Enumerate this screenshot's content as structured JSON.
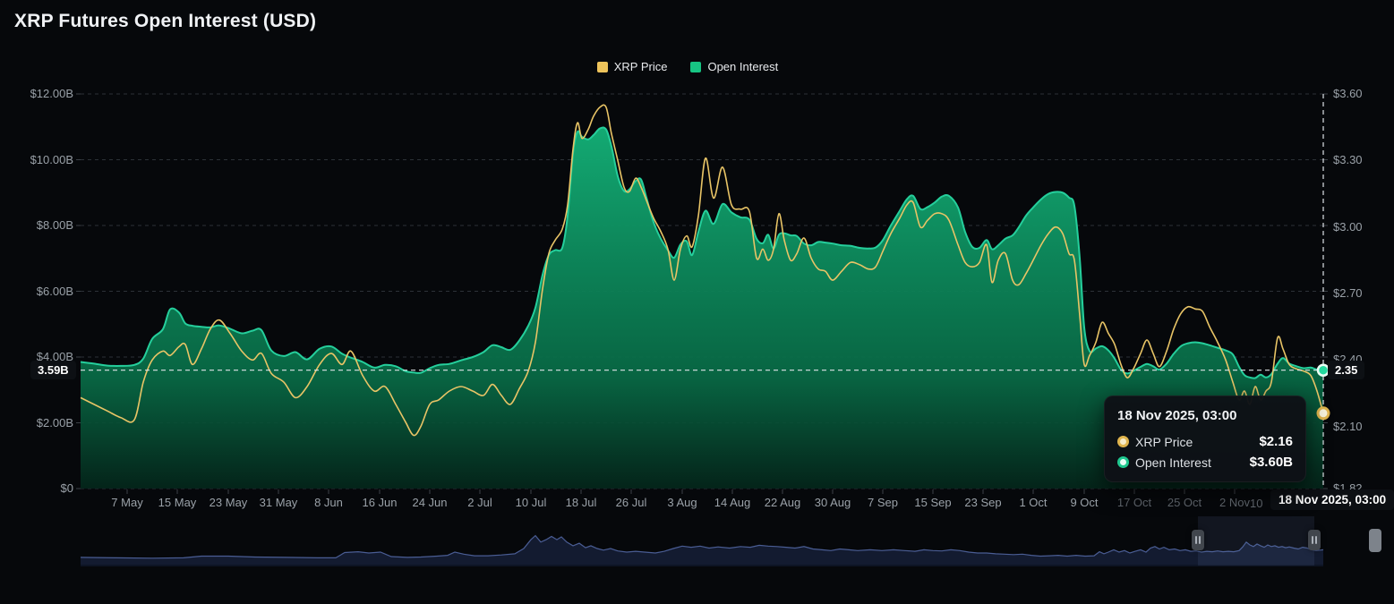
{
  "title": "XRP Futures Open Interest (USD)",
  "legend": {
    "items": [
      {
        "label": "XRP Price",
        "color": "#edc35b"
      },
      {
        "label": "Open Interest",
        "color": "#17c583"
      }
    ]
  },
  "crosshair": {
    "oi_value_label": "3.59B",
    "price_value_label": "2.35",
    "date_label": "18 Nov 2025, 03:00",
    "partial_x_tick": "10"
  },
  "tooltip": {
    "date": "18 Nov 2025, 03:00",
    "rows": [
      {
        "label": "XRP Price",
        "value": "$2.16",
        "color": "#e0b54e"
      },
      {
        "label": "Open Interest",
        "value": "$3.60B",
        "color": "#1fc88f"
      }
    ]
  },
  "chart_data": {
    "type": "line",
    "series": [
      {
        "name": "XRP Price",
        "axis": "right",
        "color": "#e8c466",
        "style": "line"
      },
      {
        "name": "Open Interest",
        "axis": "left",
        "color": "#25cf9c",
        "style": "area"
      }
    ],
    "left_axis": {
      "ticks": [
        "$12.00B",
        "$10.00B",
        "$8.00B",
        "$6.00B",
        "$4.00B",
        "$2.00B",
        "$0"
      ],
      "tick_values_b": [
        12,
        10,
        8,
        6,
        4,
        2,
        0
      ],
      "range_b": [
        0,
        12
      ]
    },
    "right_axis": {
      "ticks": [
        "$3.60",
        "$3.30",
        "$3.00",
        "$2.70",
        "$2.40",
        "$2.10",
        "$1.82"
      ],
      "tick_values": [
        3.6,
        3.3,
        3.0,
        2.7,
        2.4,
        2.1,
        1.82
      ],
      "range": [
        1.82,
        3.6
      ]
    },
    "x_ticks": [
      {
        "label": "7 May",
        "x": 142
      },
      {
        "label": "15 May",
        "x": 198
      },
      {
        "label": "23 May",
        "x": 255
      },
      {
        "label": "31 May",
        "x": 311
      },
      {
        "label": "8 Jun",
        "x": 367
      },
      {
        "label": "16 Jun",
        "x": 424
      },
      {
        "label": "24 Jun",
        "x": 480
      },
      {
        "label": "2 Jul",
        "x": 536
      },
      {
        "label": "10 Jul",
        "x": 593
      },
      {
        "label": "18 Jul",
        "x": 649
      },
      {
        "label": "26 Jul",
        "x": 705
      },
      {
        "label": "3 Aug",
        "x": 762
      },
      {
        "label": "14 Aug",
        "x": 818
      },
      {
        "label": "22 Aug",
        "x": 874
      },
      {
        "label": "30 Aug",
        "x": 930
      },
      {
        "label": "7 Sep",
        "x": 986
      },
      {
        "label": "15 Sep",
        "x": 1042
      },
      {
        "label": "23 Sep",
        "x": 1098
      },
      {
        "label": "1 Oct",
        "x": 1154
      },
      {
        "label": "9 Oct",
        "x": 1211
      },
      {
        "label": "17 Oct",
        "x": 1267,
        "dim": true
      },
      {
        "label": "25 Oct",
        "x": 1323,
        "dim": true
      },
      {
        "label": "2 Nov",
        "x": 1379,
        "dim": true
      }
    ],
    "latest": {
      "date": "18 Nov 2025, 03:00",
      "open_interest": "$3.60B",
      "xrp_price": "$2.16",
      "open_interest_b": 3.6,
      "price_usd": 2.16
    },
    "point_format": [
      "x_px",
      "open_interest_b",
      "price_usd"
    ],
    "points": [
      [
        90,
        3.85,
        2.23
      ],
      [
        105,
        3.8,
        2.2
      ],
      [
        120,
        3.74,
        2.17
      ],
      [
        135,
        3.73,
        2.14
      ],
      [
        150,
        3.76,
        2.13
      ],
      [
        160,
        3.95,
        2.3
      ],
      [
        170,
        4.55,
        2.4
      ],
      [
        182,
        4.85,
        2.44
      ],
      [
        190,
        5.45,
        2.42
      ],
      [
        200,
        5.35,
        2.46
      ],
      [
        207,
        5.02,
        2.47
      ],
      [
        215,
        4.95,
        2.38
      ],
      [
        225,
        4.92,
        2.45
      ],
      [
        235,
        4.9,
        2.54
      ],
      [
        245,
        4.96,
        2.58
      ],
      [
        257,
        4.86,
        2.52
      ],
      [
        270,
        4.72,
        2.44
      ],
      [
        282,
        4.8,
        2.4
      ],
      [
        292,
        4.82,
        2.43
      ],
      [
        303,
        4.2,
        2.34
      ],
      [
        317,
        4.03,
        2.3
      ],
      [
        330,
        4.15,
        2.23
      ],
      [
        343,
        3.93,
        2.28
      ],
      [
        357,
        4.25,
        2.38
      ],
      [
        370,
        4.32,
        2.43
      ],
      [
        382,
        4.1,
        2.38
      ],
      [
        392,
        3.98,
        2.44
      ],
      [
        405,
        3.85,
        2.33
      ],
      [
        418,
        3.68,
        2.26
      ],
      [
        430,
        3.76,
        2.28
      ],
      [
        442,
        3.72,
        2.2
      ],
      [
        453,
        3.57,
        2.12
      ],
      [
        462,
        3.53,
        2.06
      ],
      [
        470,
        3.52,
        2.1
      ],
      [
        480,
        3.66,
        2.2
      ],
      [
        490,
        3.76,
        2.22
      ],
      [
        502,
        3.79,
        2.26
      ],
      [
        515,
        3.9,
        2.28
      ],
      [
        528,
        4.0,
        2.26
      ],
      [
        540,
        4.15,
        2.24
      ],
      [
        550,
        4.36,
        2.29
      ],
      [
        560,
        4.3,
        2.24
      ],
      [
        570,
        4.22,
        2.2
      ],
      [
        580,
        4.5,
        2.27
      ],
      [
        590,
        4.95,
        2.35
      ],
      [
        598,
        5.5,
        2.48
      ],
      [
        606,
        6.5,
        2.72
      ],
      [
        613,
        7.1,
        2.88
      ],
      [
        620,
        7.25,
        2.94
      ],
      [
        628,
        7.32,
        2.99
      ],
      [
        634,
        8.3,
        3.1
      ],
      [
        640,
        10.2,
        3.35
      ],
      [
        645,
        10.85,
        3.47
      ],
      [
        650,
        10.7,
        3.4
      ],
      [
        657,
        10.62,
        3.44
      ],
      [
        663,
        10.75,
        3.5
      ],
      [
        670,
        10.95,
        3.54
      ],
      [
        677,
        10.92,
        3.54
      ],
      [
        683,
        10.4,
        3.42
      ],
      [
        690,
        9.5,
        3.3
      ],
      [
        697,
        9.05,
        3.18
      ],
      [
        703,
        9.1,
        3.16
      ],
      [
        710,
        9.35,
        3.22
      ],
      [
        716,
        9.4,
        3.18
      ],
      [
        722,
        8.85,
        3.12
      ],
      [
        730,
        8.1,
        3.04
      ],
      [
        738,
        7.6,
        2.98
      ],
      [
        746,
        7.25,
        2.9
      ],
      [
        753,
        7.02,
        2.76
      ],
      [
        760,
        7.42,
        2.9
      ],
      [
        767,
        7.52,
        2.96
      ],
      [
        773,
        7.1,
        2.91
      ],
      [
        780,
        7.8,
        3.05
      ],
      [
        788,
        8.45,
        3.31
      ],
      [
        797,
        8.05,
        3.13
      ],
      [
        807,
        8.65,
        3.27
      ],
      [
        817,
        8.4,
        3.1
      ],
      [
        827,
        8.25,
        3.08
      ],
      [
        837,
        8.18,
        3.07
      ],
      [
        845,
        7.6,
        2.86
      ],
      [
        852,
        7.46,
        2.9
      ],
      [
        858,
        7.72,
        2.85
      ],
      [
        864,
        7.3,
        2.9
      ],
      [
        870,
        7.72,
        3.06
      ],
      [
        876,
        7.76,
        2.94
      ],
      [
        883,
        7.7,
        2.85
      ],
      [
        890,
        7.68,
        2.88
      ],
      [
        898,
        7.45,
        2.95
      ],
      [
        906,
        7.4,
        2.86
      ],
      [
        914,
        7.5,
        2.81
      ],
      [
        922,
        7.48,
        2.8
      ],
      [
        930,
        7.45,
        2.76
      ],
      [
        940,
        7.4,
        2.8
      ],
      [
        950,
        7.38,
        2.84
      ],
      [
        960,
        7.32,
        2.83
      ],
      [
        970,
        7.3,
        2.81
      ],
      [
        978,
        7.33,
        2.82
      ],
      [
        986,
        7.55,
        2.89
      ],
      [
        995,
        8.0,
        2.97
      ],
      [
        1005,
        8.45,
        3.04
      ],
      [
        1013,
        8.8,
        3.1
      ],
      [
        1020,
        8.9,
        3.11
      ],
      [
        1028,
        8.5,
        3.0
      ],
      [
        1036,
        8.56,
        3.03
      ],
      [
        1044,
        8.7,
        3.06
      ],
      [
        1052,
        8.88,
        3.06
      ],
      [
        1060,
        8.9,
        3.03
      ],
      [
        1070,
        8.55,
        2.92
      ],
      [
        1078,
        7.8,
        2.84
      ],
      [
        1086,
        7.35,
        2.82
      ],
      [
        1094,
        7.32,
        2.84
      ],
      [
        1102,
        7.56,
        2.92
      ],
      [
        1108,
        7.28,
        2.75
      ],
      [
        1115,
        7.4,
        2.85
      ],
      [
        1123,
        7.6,
        2.88
      ],
      [
        1131,
        7.7,
        2.76
      ],
      [
        1138,
        7.95,
        2.74
      ],
      [
        1146,
        8.3,
        2.79
      ],
      [
        1154,
        8.55,
        2.85
      ],
      [
        1163,
        8.8,
        2.92
      ],
      [
        1171,
        8.96,
        2.97
      ],
      [
        1179,
        9.02,
        3.0
      ],
      [
        1187,
        9.0,
        2.97
      ],
      [
        1194,
        8.85,
        2.88
      ],
      [
        1200,
        8.6,
        2.85
      ],
      [
        1206,
        7.0,
        2.6
      ],
      [
        1211,
        4.9,
        2.38
      ],
      [
        1217,
        4.18,
        2.42
      ],
      [
        1224,
        4.26,
        2.48
      ],
      [
        1231,
        4.33,
        2.57
      ],
      [
        1238,
        4.2,
        2.52
      ],
      [
        1245,
        3.95,
        2.47
      ],
      [
        1252,
        3.62,
        2.38
      ],
      [
        1259,
        3.5,
        2.32
      ],
      [
        1266,
        3.58,
        2.36
      ],
      [
        1274,
        3.7,
        2.43
      ],
      [
        1281,
        3.79,
        2.49
      ],
      [
        1288,
        3.72,
        2.43
      ],
      [
        1295,
        3.62,
        2.37
      ],
      [
        1303,
        3.8,
        2.44
      ],
      [
        1311,
        4.1,
        2.54
      ],
      [
        1319,
        4.33,
        2.61
      ],
      [
        1327,
        4.42,
        2.64
      ],
      [
        1335,
        4.45,
        2.63
      ],
      [
        1343,
        4.42,
        2.62
      ],
      [
        1351,
        4.36,
        2.55
      ],
      [
        1360,
        4.28,
        2.48
      ],
      [
        1369,
        4.2,
        2.4
      ],
      [
        1377,
        4.08,
        2.3
      ],
      [
        1384,
        3.7,
        2.22
      ],
      [
        1390,
        3.45,
        2.26
      ],
      [
        1396,
        3.38,
        2.2
      ],
      [
        1402,
        3.36,
        2.28
      ],
      [
        1408,
        3.46,
        2.22
      ],
      [
        1414,
        3.38,
        2.26
      ],
      [
        1420,
        3.48,
        2.3
      ],
      [
        1427,
        3.8,
        2.5
      ],
      [
        1433,
        3.97,
        2.45
      ],
      [
        1440,
        3.8,
        2.38
      ],
      [
        1448,
        3.72,
        2.36
      ],
      [
        1456,
        3.66,
        2.35
      ],
      [
        1464,
        3.68,
        2.33
      ],
      [
        1471,
        3.62,
        2.26
      ],
      [
        1478,
        3.6,
        2.16
      ]
    ]
  },
  "navigator": {
    "brush_x": [
      1338,
      1468
    ],
    "points": [
      [
        90,
        0.18
      ],
      [
        130,
        0.17
      ],
      [
        170,
        0.16
      ],
      [
        205,
        0.17
      ],
      [
        225,
        0.21
      ],
      [
        255,
        0.21
      ],
      [
        285,
        0.19
      ],
      [
        320,
        0.18
      ],
      [
        355,
        0.17
      ],
      [
        375,
        0.17
      ],
      [
        385,
        0.3
      ],
      [
        400,
        0.32
      ],
      [
        412,
        0.29
      ],
      [
        425,
        0.31
      ],
      [
        437,
        0.2
      ],
      [
        455,
        0.18
      ],
      [
        470,
        0.19
      ],
      [
        488,
        0.21
      ],
      [
        500,
        0.23
      ],
      [
        508,
        0.31
      ],
      [
        518,
        0.26
      ],
      [
        530,
        0.22
      ],
      [
        545,
        0.22
      ],
      [
        560,
        0.24
      ],
      [
        575,
        0.27
      ],
      [
        585,
        0.4
      ],
      [
        593,
        0.62
      ],
      [
        598,
        0.72
      ],
      [
        604,
        0.56
      ],
      [
        610,
        0.62
      ],
      [
        616,
        0.7
      ],
      [
        622,
        0.62
      ],
      [
        627,
        0.69
      ],
      [
        633,
        0.56
      ],
      [
        640,
        0.47
      ],
      [
        647,
        0.53
      ],
      [
        654,
        0.42
      ],
      [
        660,
        0.47
      ],
      [
        667,
        0.4
      ],
      [
        674,
        0.36
      ],
      [
        682,
        0.4
      ],
      [
        690,
        0.34
      ],
      [
        700,
        0.31
      ],
      [
        710,
        0.33
      ],
      [
        720,
        0.31
      ],
      [
        732,
        0.29
      ],
      [
        742,
        0.33
      ],
      [
        752,
        0.4
      ],
      [
        762,
        0.46
      ],
      [
        772,
        0.43
      ],
      [
        782,
        0.46
      ],
      [
        792,
        0.41
      ],
      [
        802,
        0.44
      ],
      [
        815,
        0.41
      ],
      [
        827,
        0.45
      ],
      [
        838,
        0.43
      ],
      [
        848,
        0.48
      ],
      [
        858,
        0.46
      ],
      [
        868,
        0.45
      ],
      [
        878,
        0.43
      ],
      [
        888,
        0.41
      ],
      [
        898,
        0.45
      ],
      [
        908,
        0.39
      ],
      [
        918,
        0.37
      ],
      [
        928,
        0.35
      ],
      [
        938,
        0.39
      ],
      [
        948,
        0.37
      ],
      [
        958,
        0.35
      ],
      [
        972,
        0.37
      ],
      [
        985,
        0.35
      ],
      [
        998,
        0.37
      ],
      [
        1010,
        0.35
      ],
      [
        1022,
        0.33
      ],
      [
        1032,
        0.37
      ],
      [
        1042,
        0.35
      ],
      [
        1052,
        0.34
      ],
      [
        1062,
        0.37
      ],
      [
        1072,
        0.35
      ],
      [
        1082,
        0.31
      ],
      [
        1092,
        0.29
      ],
      [
        1102,
        0.29
      ],
      [
        1112,
        0.27
      ],
      [
        1122,
        0.26
      ],
      [
        1132,
        0.25
      ],
      [
        1142,
        0.26
      ],
      [
        1152,
        0.23
      ],
      [
        1162,
        0.21
      ],
      [
        1172,
        0.22
      ],
      [
        1182,
        0.23
      ],
      [
        1192,
        0.21
      ],
      [
        1202,
        0.23
      ],
      [
        1212,
        0.21
      ],
      [
        1222,
        0.22
      ],
      [
        1228,
        0.32
      ],
      [
        1233,
        0.27
      ],
      [
        1238,
        0.31
      ],
      [
        1244,
        0.37
      ],
      [
        1250,
        0.31
      ],
      [
        1256,
        0.35
      ],
      [
        1262,
        0.29
      ],
      [
        1268,
        0.33
      ],
      [
        1274,
        0.37
      ],
      [
        1280,
        0.31
      ],
      [
        1285,
        0.41
      ],
      [
        1290,
        0.45
      ],
      [
        1295,
        0.39
      ],
      [
        1300,
        0.43
      ],
      [
        1306,
        0.37
      ],
      [
        1312,
        0.39
      ],
      [
        1318,
        0.35
      ],
      [
        1324,
        0.37
      ],
      [
        1330,
        0.33
      ],
      [
        1336,
        0.34
      ],
      [
        1342,
        0.31
      ],
      [
        1348,
        0.33
      ],
      [
        1354,
        0.32
      ],
      [
        1360,
        0.34
      ],
      [
        1366,
        0.32
      ],
      [
        1372,
        0.33
      ],
      [
        1378,
        0.32
      ],
      [
        1384,
        0.35
      ],
      [
        1388,
        0.44
      ],
      [
        1392,
        0.56
      ],
      [
        1396,
        0.49
      ],
      [
        1400,
        0.45
      ],
      [
        1404,
        0.51
      ],
      [
        1408,
        0.47
      ],
      [
        1412,
        0.43
      ],
      [
        1416,
        0.49
      ],
      [
        1420,
        0.45
      ],
      [
        1424,
        0.47
      ],
      [
        1428,
        0.43
      ],
      [
        1432,
        0.45
      ],
      [
        1436,
        0.42
      ],
      [
        1440,
        0.44
      ],
      [
        1445,
        0.41
      ],
      [
        1450,
        0.39
      ],
      [
        1455,
        0.43
      ],
      [
        1460,
        0.41
      ],
      [
        1465,
        0.37
      ],
      [
        1470,
        0.35
      ],
      [
        1478,
        0.37
      ]
    ]
  },
  "colors": {
    "background": "#06080b",
    "price_line": "#e8c466",
    "oi_line": "#25cf9c",
    "oi_fill_top": "#15b97d",
    "oi_fill_bottom": "#04271b",
    "grid": "#2c3137",
    "axis_text": "#9aa1a8",
    "crosshair": "#dfe3e8",
    "nav_line": "#4a5d94",
    "nav_fill": "#131b30",
    "brush": "#6478b4"
  }
}
